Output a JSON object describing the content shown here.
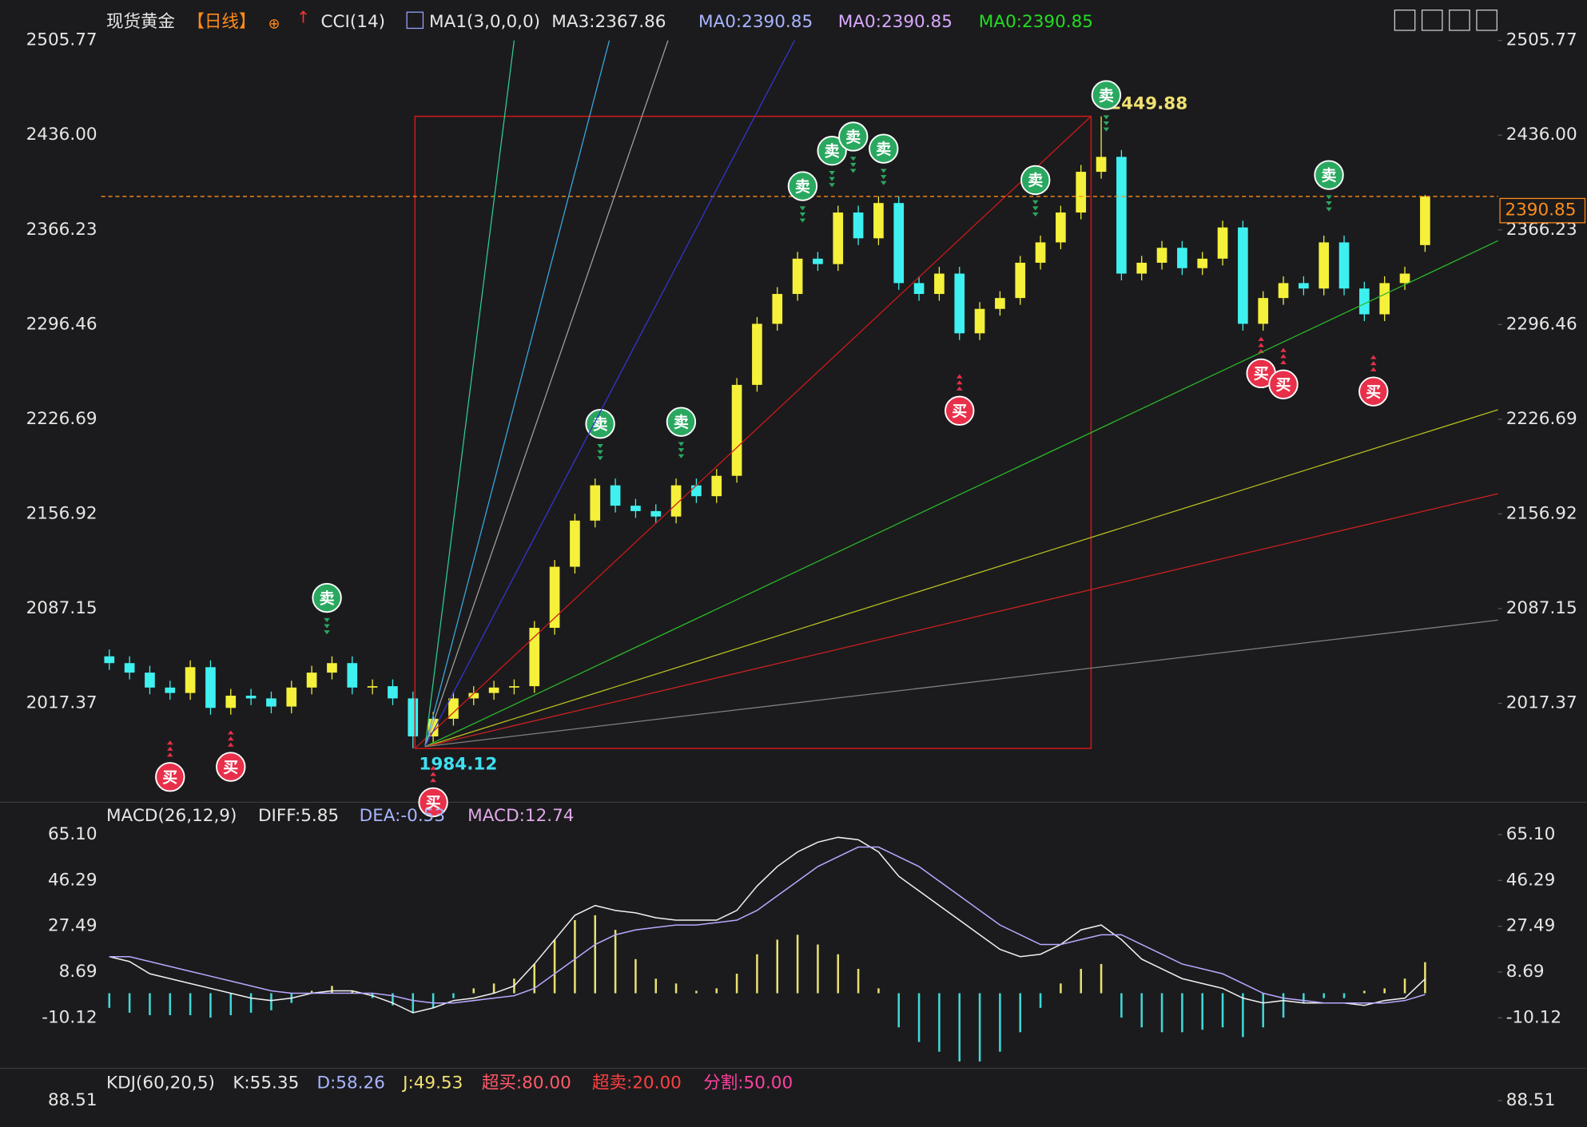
{
  "chart_data": [
    {
      "type": "candlestick",
      "header": [
        {
          "text": "现货黄金",
          "color": "#e6e6e6"
        },
        {
          "text": "【日线】",
          "color": "#ff8c1a"
        },
        {
          "text": "CCI(14)",
          "color": "#e6e6e6"
        },
        {
          "text": "MA1(3,0,0,0)",
          "color": "#e6e6e6"
        },
        {
          "text": "MA3:2367.86",
          "color": "#e6e6e6"
        },
        {
          "text": "MA0:2390.85",
          "color": "#a8b4ff"
        },
        {
          "text": "MA0:2390.85",
          "color": "#d8a8ff"
        },
        {
          "text": "MA0:2390.85",
          "color": "#22dd22"
        }
      ],
      "open": [
        2052,
        2047,
        2040,
        2029,
        2025,
        2044,
        2014,
        2023,
        2021,
        2015,
        2029,
        2040,
        2047,
        2029,
        2030,
        2021,
        1993,
        2006,
        2021,
        2025,
        2029,
        2030,
        2073,
        2118,
        2152,
        2178,
        2163,
        2159,
        2155,
        2178,
        2170,
        2185,
        2252,
        2297,
        2319,
        2345,
        2341,
        2379,
        2360,
        2386,
        2327,
        2319,
        2334,
        2290,
        2308,
        2316,
        2342,
        2357,
        2379,
        2409,
        2420,
        2334,
        2342,
        2353,
        2338,
        2345,
        2368,
        2297,
        2316,
        2327,
        2323,
        2357,
        2323,
        2304,
        2327,
        2355
      ],
      "high": [
        2057,
        2052,
        2045,
        2034,
        2049,
        2049,
        2028,
        2028,
        2026,
        2034,
        2045,
        2052,
        2052,
        2035,
        2035,
        2026,
        2011,
        2026,
        2030,
        2034,
        2035,
        2078,
        2123,
        2157,
        2183,
        2183,
        2168,
        2164,
        2183,
        2183,
        2190,
        2257,
        2302,
        2324,
        2350,
        2350,
        2384,
        2384,
        2391,
        2391,
        2332,
        2339,
        2339,
        2313,
        2321,
        2347,
        2362,
        2384,
        2414,
        2449.88,
        2425,
        2347,
        2358,
        2358,
        2350,
        2373,
        2373,
        2321,
        2332,
        2332,
        2362,
        2362,
        2328,
        2332,
        2339,
        2392
      ],
      "low": [
        2042,
        2035,
        2024,
        2020,
        2020,
        2009,
        2009,
        2016,
        2010,
        2010,
        2024,
        2035,
        2024,
        2024,
        2016,
        1984.12,
        1988,
        2001,
        2016,
        2020,
        2024,
        2025,
        2068,
        2113,
        2147,
        2158,
        2154,
        2150,
        2150,
        2165,
        2165,
        2180,
        2247,
        2292,
        2314,
        2336,
        2336,
        2355,
        2355,
        2322,
        2314,
        2314,
        2285,
        2285,
        2303,
        2311,
        2337,
        2352,
        2374,
        2404,
        2329,
        2329,
        2337,
        2333,
        2333,
        2340,
        2292,
        2292,
        2311,
        2318,
        2318,
        2318,
        2299,
        2299,
        2322,
        2350
      ],
      "close": [
        2047,
        2040,
        2029,
        2025,
        2044,
        2014,
        2023,
        2021,
        2015,
        2029,
        2040,
        2047,
        2029,
        2030,
        2021,
        1993,
        2006,
        2021,
        2025,
        2029,
        2030,
        2073,
        2118,
        2152,
        2178,
        2163,
        2159,
        2155,
        2178,
        2170,
        2185,
        2252,
        2297,
        2319,
        2345,
        2341,
        2379,
        2360,
        2386,
        2327,
        2319,
        2334,
        2290,
        2308,
        2316,
        2342,
        2357,
        2379,
        2409,
        2420,
        2334,
        2342,
        2353,
        2338,
        2345,
        2368,
        2297,
        2316,
        2327,
        2323,
        2357,
        2323,
        2304,
        2327,
        2334,
        2390.85
      ],
      "up_color": "#f5f03a",
      "down_color": "#3ff0f0",
      "ylim": [
        1946.72,
        2528.13
      ],
      "yticks": [
        2017.37,
        2087.15,
        2156.92,
        2226.69,
        2296.46,
        2366.23,
        {
          "value": 2436,
          "label": "2436.00"
        },
        2505.77
      ],
      "signals": [
        {
          "text": "买",
          "color": "#e8304a"
        },
        {
          "text": "买",
          "color": "#e8304a"
        },
        {
          "text": "买",
          "color": "#e8304a"
        },
        {
          "text": "卖",
          "color": "#2aa860"
        },
        {
          "text": "卖",
          "color": "#2aa860"
        },
        {
          "text": "卖",
          "color": "#2aa860"
        },
        {
          "text": "卖",
          "color": "#2aa860"
        },
        {
          "text": "卖",
          "color": "#2aa860"
        },
        {
          "text": "卖",
          "color": "#2aa860"
        },
        {
          "text": "卖",
          "color": "#2aa860"
        },
        {
          "text": "卖",
          "color": "#2aa860"
        },
        {
          "text": "卖",
          "color": "#2aa860"
        },
        {
          "text": "卖",
          "color": "#2aa860"
        },
        {
          "text": "买",
          "color": "#e8304a"
        },
        {
          "text": "买",
          "color": "#e8304a"
        },
        {
          "text": "买",
          "color": "#e8304a"
        },
        {
          "text": "买",
          "color": "#e8304a"
        }
      ]
    },
    {
      "type": "macd",
      "header": [
        {
          "text": "MACD(26,12,9)",
          "color": "#e6e6e6"
        },
        {
          "text": "DIFF:5.85",
          "color": "#e6e6e6"
        },
        {
          "text": "DEA:-0.53",
          "color": "#a8b4ff"
        },
        {
          "text": "MACD:12.74",
          "color": "#e0a8e8"
        }
      ],
      "values": [
        -6,
        -8,
        -9,
        -9,
        -9,
        -10,
        -9,
        -8,
        -7,
        -4,
        1,
        3,
        1,
        -2,
        -5,
        -8,
        -6,
        -2,
        2,
        4,
        6,
        12,
        22,
        30,
        32,
        26,
        14,
        6,
        4,
        1,
        2,
        8,
        16,
        22,
        24,
        20,
        16,
        10,
        2,
        -14,
        -20,
        -24,
        -28,
        -28,
        -24,
        -16,
        -6,
        4,
        10,
        12,
        -10,
        -14,
        -16,
        -16,
        -15,
        -14,
        -18,
        -14,
        -10,
        -4,
        -2,
        -2,
        1,
        2,
        6,
        12.74
      ],
      "pos_color": "#e8e070",
      "neg_color": "#40d8d8",
      "series": [
        {
          "color": "#f0f0f0",
          "values": [
            15,
            13,
            8,
            6,
            4,
            2,
            0,
            -2,
            -3,
            -2,
            0,
            1,
            1,
            -1,
            -4,
            -8,
            -6,
            -3,
            -2,
            0,
            3,
            12,
            22,
            32,
            36,
            34,
            33,
            31,
            30,
            30,
            30,
            34,
            44,
            52,
            58,
            62,
            64,
            63,
            58,
            48,
            42,
            36,
            30,
            24,
            18,
            15,
            16,
            20,
            26,
            28,
            22,
            14,
            10,
            6,
            4,
            2,
            -2,
            -4,
            -3,
            -4,
            -4,
            -4,
            -5,
            -3,
            -2,
            5.85
          ]
        },
        {
          "color": "#b8a8ff",
          "values": [
            15,
            15,
            13,
            11,
            9,
            7,
            5,
            3,
            1,
            0,
            0,
            0,
            0,
            0,
            -1,
            -3,
            -4,
            -4,
            -3,
            -2,
            -1,
            2,
            8,
            14,
            20,
            24,
            26,
            27,
            28,
            28,
            29,
            30,
            34,
            40,
            46,
            52,
            56,
            60,
            60,
            56,
            52,
            46,
            40,
            34,
            28,
            24,
            20,
            20,
            22,
            24,
            24,
            20,
            16,
            12,
            10,
            8,
            4,
            0,
            -2,
            -3,
            -4,
            -4,
            -4,
            -4,
            -3,
            -0.53
          ]
        }
      ],
      "ylim": [
        -30.4,
        77.56
      ],
      "yticks": [
        -10.12,
        8.69,
        27.49,
        46.29,
        {
          "value": 65.1,
          "label": "65.10"
        }
      ]
    },
    {
      "type": "kdj",
      "header": [
        {
          "text": "KDJ(60,20,5)",
          "color": "#e6e6e6"
        },
        {
          "text": "K:55.35",
          "color": "#e6e6e6"
        },
        {
          "text": "D:58.26",
          "color": "#a8b4ff"
        },
        {
          "text": "J:49.53",
          "color": "#f0e070"
        },
        {
          "text": "超买:80.00",
          "color": "#ff5a6a"
        },
        {
          "text": "超卖:20.00",
          "color": "#ff4040"
        },
        {
          "text": "分割:50.00",
          "color": "#ff40a0"
        }
      ],
      "ylim": [
        78.55,
        100
      ],
      "yticks": [
        88.51
      ]
    }
  ]
}
